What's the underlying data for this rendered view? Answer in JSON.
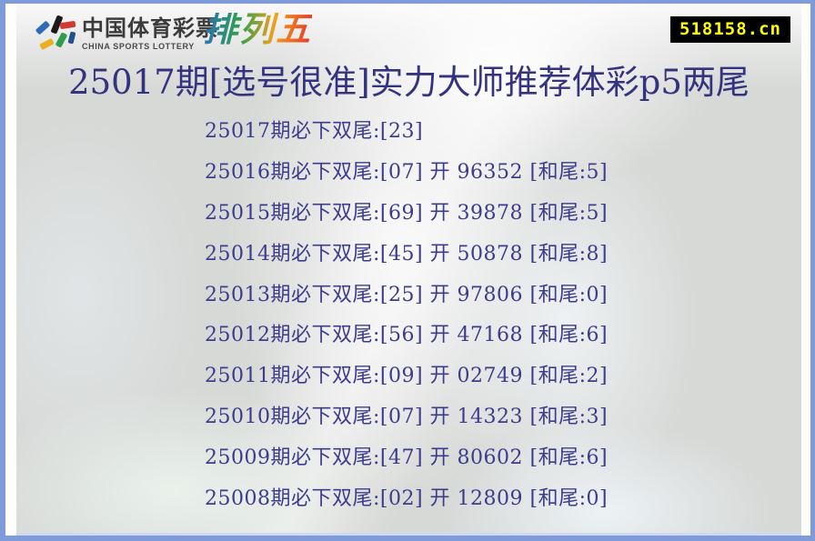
{
  "header": {
    "logo_cn": "中国体育彩票",
    "logo_en": "CHINA SPORTS LOTTERY",
    "brand": "排列五",
    "badge": "518158.cn"
  },
  "title": "25017期[选号很准]实力大师推荐体彩p5两尾",
  "colors": {
    "frame_border": "#7f9bd9",
    "title_text": "#33337f",
    "row_text": "#3c3c8c",
    "badge_bg": "#000000",
    "badge_text": "#ffff00",
    "background": "#d7d9d7"
  },
  "icons": {
    "logo_mark": "china-sports-lottery-figure"
  },
  "rows": [
    {
      "text": "25017期必下双尾:[23]",
      "period": "25017",
      "pick": "23",
      "result": "",
      "sum_tail": ""
    },
    {
      "text": "25016期必下双尾:[07] 开 96352 [和尾:5]",
      "period": "25016",
      "pick": "07",
      "result": "96352",
      "sum_tail": "5"
    },
    {
      "text": "25015期必下双尾:[69] 开 39878 [和尾:5]",
      "period": "25015",
      "pick": "69",
      "result": "39878",
      "sum_tail": "5"
    },
    {
      "text": "25014期必下双尾:[45] 开 50878 [和尾:8]",
      "period": "25014",
      "pick": "45",
      "result": "50878",
      "sum_tail": "8"
    },
    {
      "text": "25013期必下双尾:[25] 开 97806 [和尾:0]",
      "period": "25013",
      "pick": "25",
      "result": "97806",
      "sum_tail": "0"
    },
    {
      "text": "25012期必下双尾:[56] 开 47168 [和尾:6]",
      "period": "25012",
      "pick": "56",
      "result": "47168",
      "sum_tail": "6"
    },
    {
      "text": "25011期必下双尾:[09] 开 02749 [和尾:2]",
      "period": "25011",
      "pick": "09",
      "result": "02749",
      "sum_tail": "2"
    },
    {
      "text": "25010期必下双尾:[07] 开 14323 [和尾:3]",
      "period": "25010",
      "pick": "07",
      "result": "14323",
      "sum_tail": "3"
    },
    {
      "text": "25009期必下双尾:[47] 开 80602 [和尾:6]",
      "period": "25009",
      "pick": "47",
      "result": "80602",
      "sum_tail": "6"
    },
    {
      "text": "25008期必下双尾:[02] 开 12809 [和尾:0]",
      "period": "25008",
      "pick": "02",
      "result": "12809",
      "sum_tail": "0"
    }
  ]
}
